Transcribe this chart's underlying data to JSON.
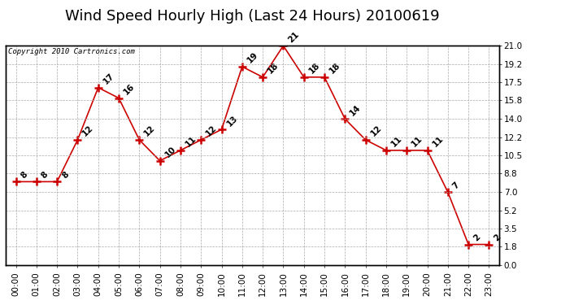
{
  "title": "Wind Speed Hourly High (Last 24 Hours) 20100619",
  "copyright": "Copyright 2010 Cartronics.com",
  "hours": [
    "00:00",
    "01:00",
    "02:00",
    "03:00",
    "04:00",
    "05:00",
    "06:00",
    "07:00",
    "08:00",
    "09:00",
    "10:00",
    "11:00",
    "12:00",
    "13:00",
    "14:00",
    "15:00",
    "16:00",
    "17:00",
    "18:00",
    "19:00",
    "20:00",
    "21:00",
    "22:00",
    "23:00"
  ],
  "values": [
    8,
    8,
    8,
    12,
    17,
    16,
    12,
    10,
    11,
    12,
    13,
    19,
    18,
    21,
    18,
    18,
    14,
    12,
    11,
    11,
    11,
    7,
    2,
    2
  ],
  "line_color": "#cc0000",
  "marker": "+",
  "marker_color": "#cc0000",
  "background_color": "#ffffff",
  "grid_color": "#aaaaaa",
  "ylim": [
    0.0,
    21.0
  ],
  "yticks_right": [
    0.0,
    1.8,
    3.5,
    5.2,
    7.0,
    8.8,
    10.5,
    12.2,
    14.0,
    15.8,
    17.5,
    19.2,
    21.0
  ],
  "title_fontsize": 13,
  "label_fontsize": 7.5,
  "annotation_fontsize": 7.5
}
